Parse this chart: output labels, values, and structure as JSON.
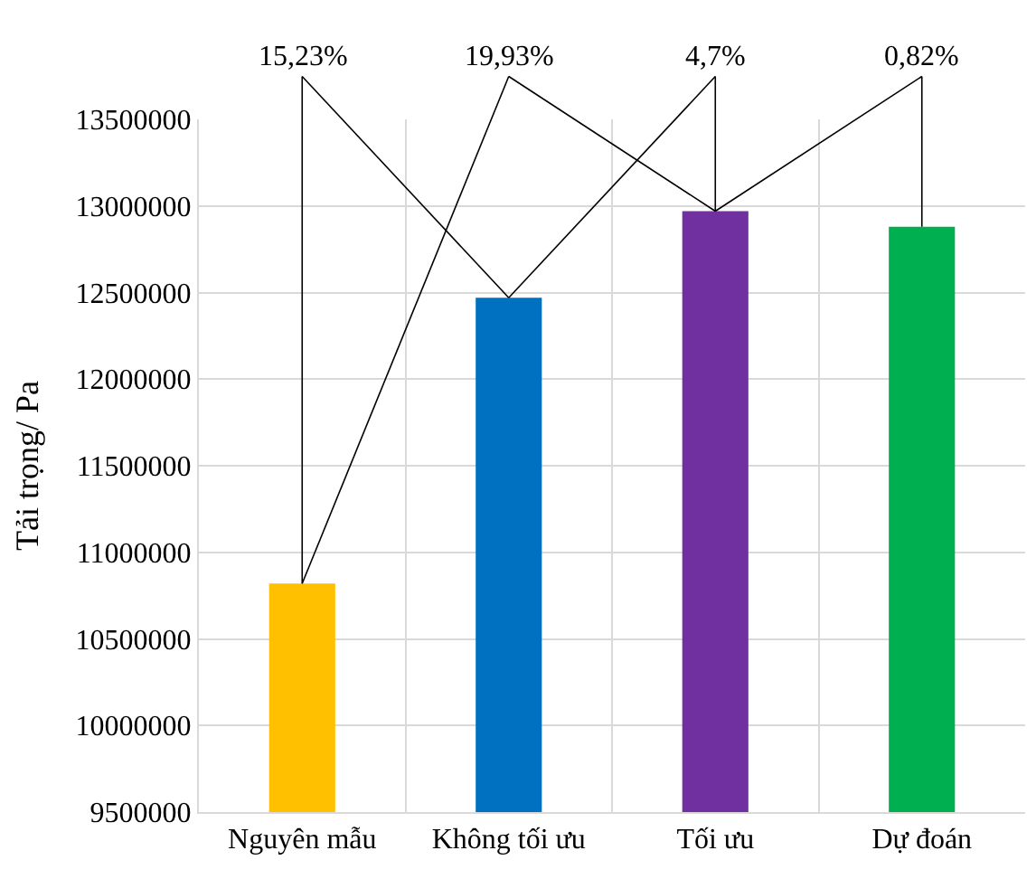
{
  "chart_data": {
    "type": "bar",
    "categories": [
      "Nguyên mẫu",
      "Không tối ưu",
      "Tối ưu",
      "Dự đoán"
    ],
    "values": [
      10820000,
      12470000,
      12970000,
      12880000
    ],
    "colors": [
      "#ffc000",
      "#0070c0",
      "#7030a0",
      "#00b050"
    ],
    "ylabel": "Tải trọng/ Pa",
    "ylim": [
      9500000,
      13500000
    ],
    "yticks": [
      9500000,
      10000000,
      10500000,
      11000000,
      11500000,
      12000000,
      12500000,
      13000000,
      13500000
    ],
    "annotations": [
      {
        "text": "15,23%",
        "x": "Không tối ưu",
        "y": 12470000
      },
      {
        "text": "19,93%",
        "x": "Tối ưu",
        "y": 12970000
      },
      {
        "text": "4,7%",
        "x": "Tối ưu",
        "y": 12970000
      },
      {
        "text": "0,82%",
        "x": "Dự đoán",
        "y": 12880000
      }
    ],
    "grid": true
  }
}
